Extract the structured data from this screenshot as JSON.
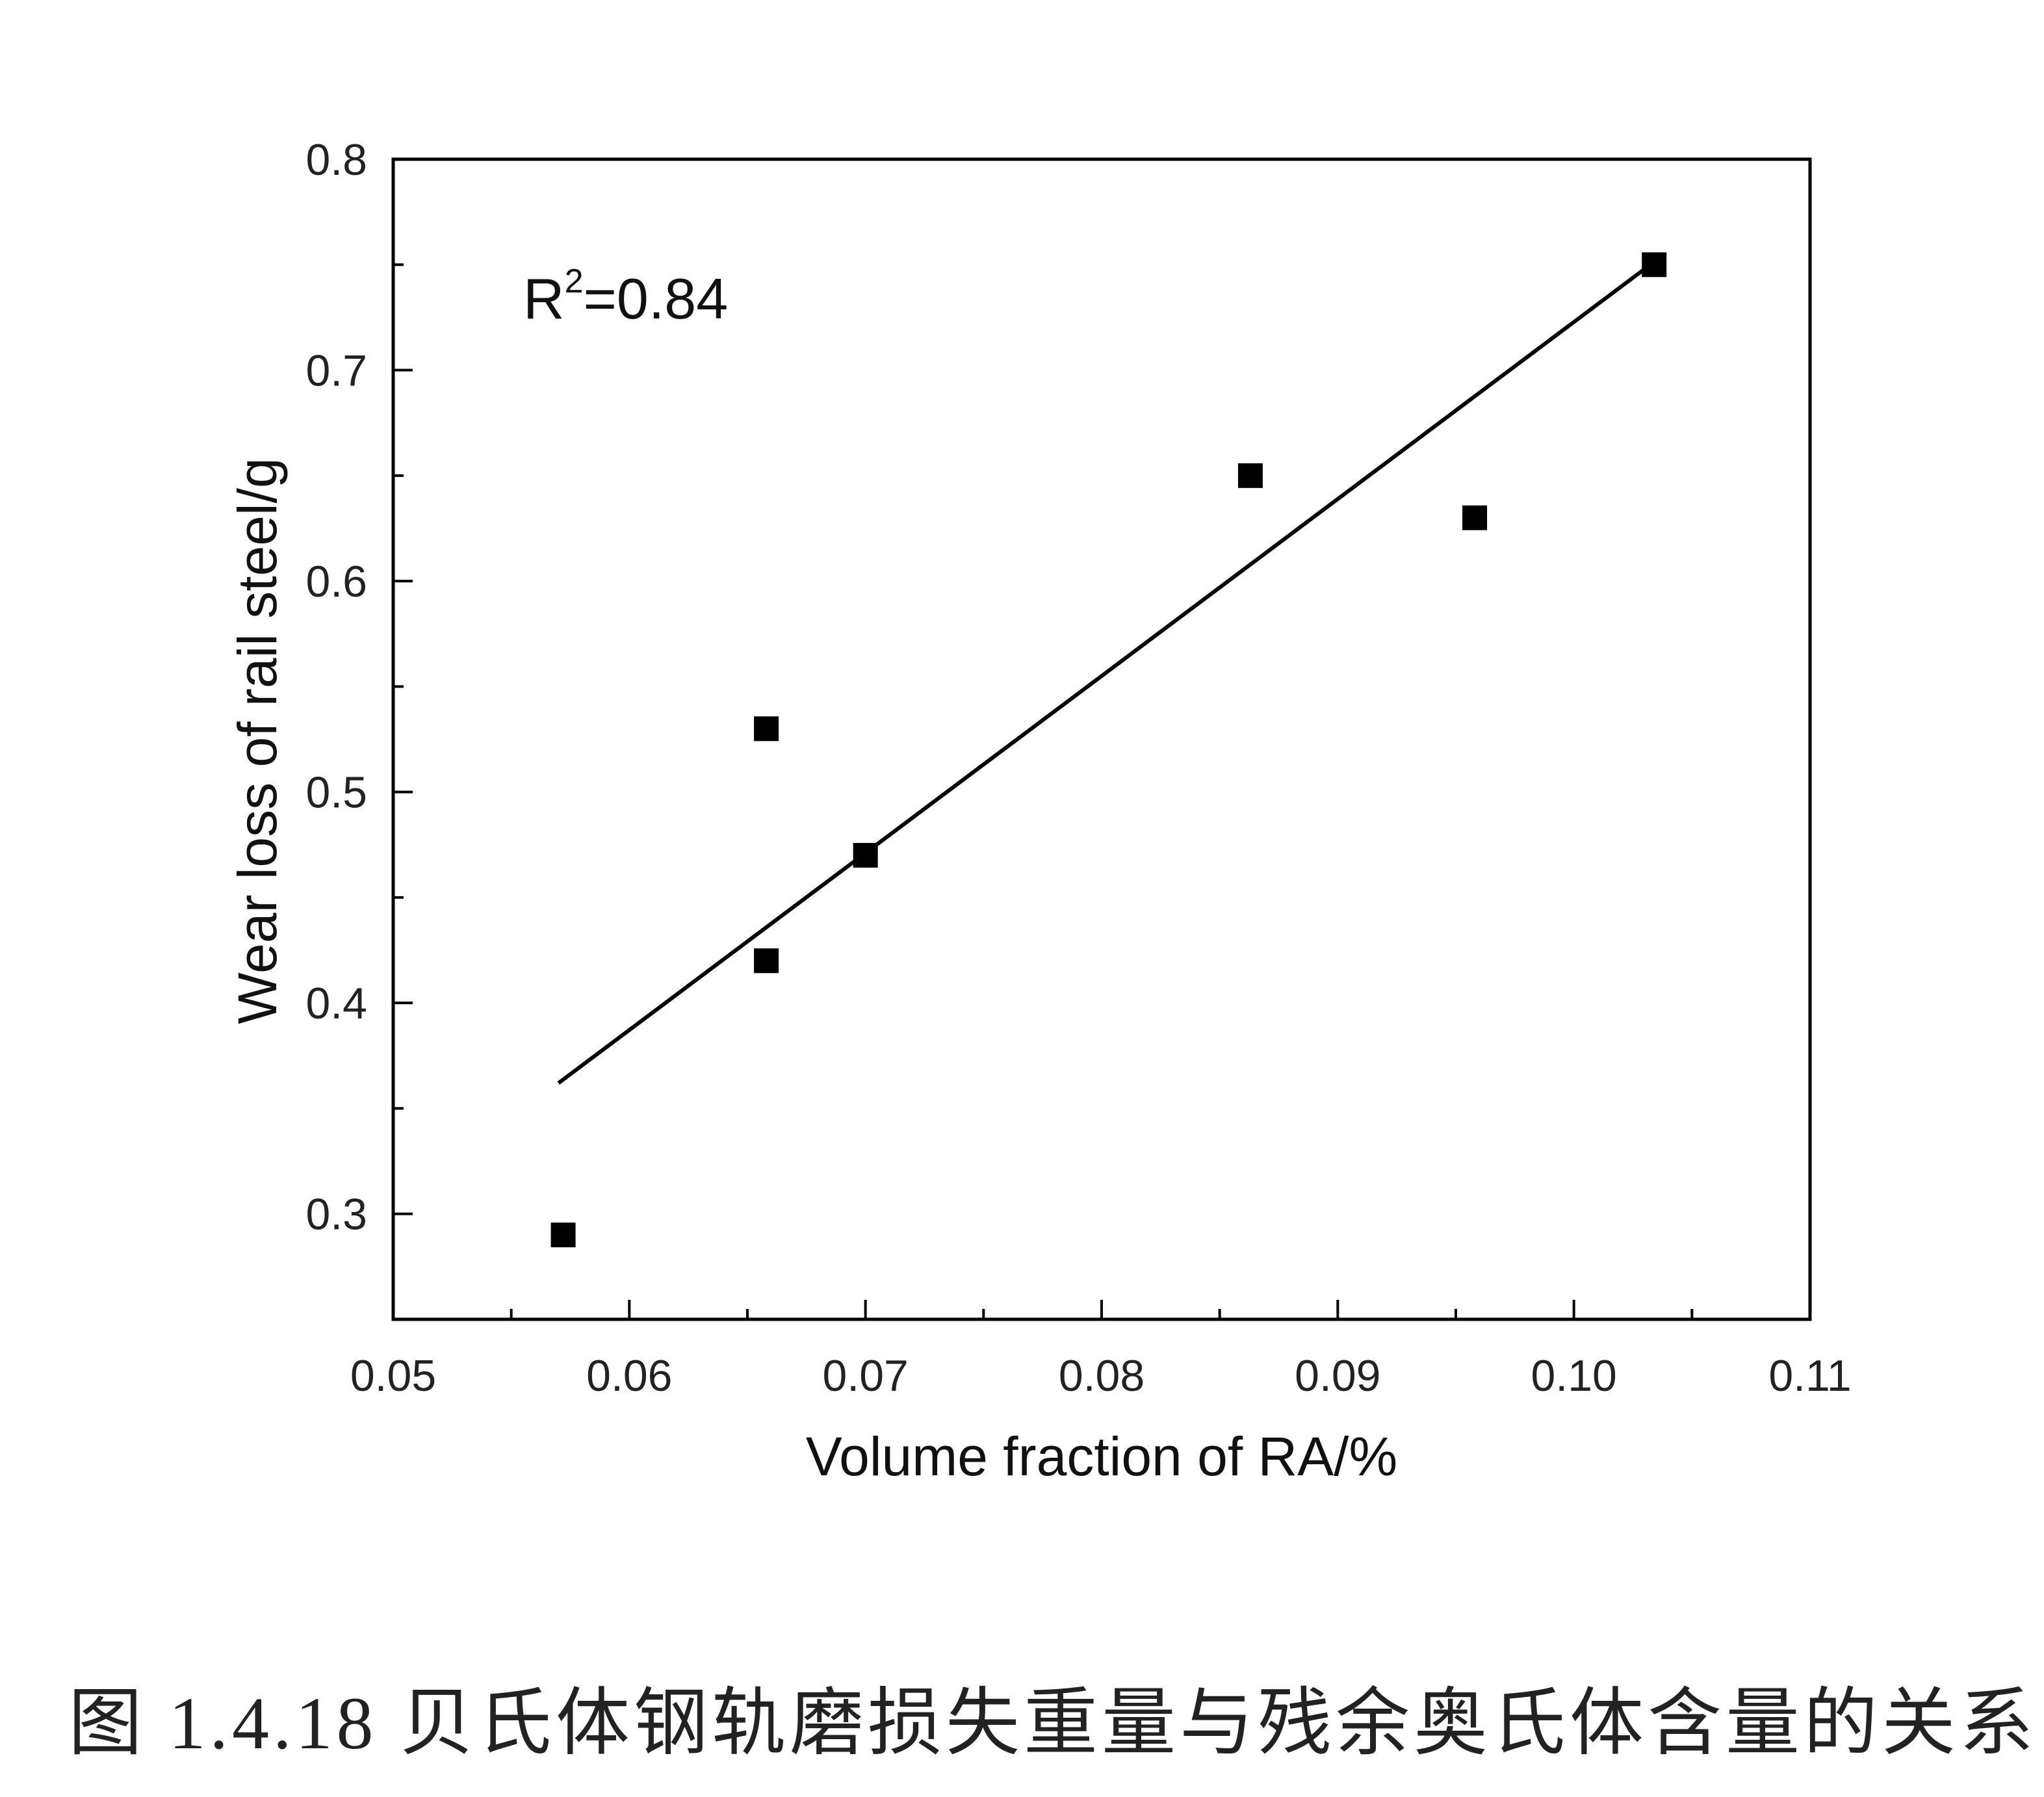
{
  "chart_data": {
    "type": "scatter",
    "xlabel": "Volume fraction of RA/%",
    "ylabel": "Wear loss of rail steel/g",
    "xlim": [
      0.05,
      0.11
    ],
    "ylim": [
      0.25,
      0.8
    ],
    "xticks": [
      "0.05",
      "0.06",
      "0.07",
      "0.08",
      "0.09",
      "0.10",
      "0.11"
    ],
    "yticks": [
      "0.3",
      "0.4",
      "0.5",
      "0.6",
      "0.7",
      "0.8"
    ],
    "x": [
      0.0572,
      0.0658,
      0.0658,
      0.07,
      0.0863,
      0.0958,
      0.1034
    ],
    "y": [
      0.29,
      0.53,
      0.42,
      0.47,
      0.65,
      0.63,
      0.75
    ],
    "fit_line": {
      "x": [
        0.057,
        0.103
      ],
      "y": [
        0.362,
        0.748
      ]
    },
    "annotation": {
      "base": "R",
      "sup": "2",
      "rest": "=0.84"
    },
    "marker": "square",
    "grid": false,
    "legend": "none",
    "color": "#000000"
  },
  "caption": "图 1.4.18 贝氏体钢轨磨损失重量与残余奥氏体含量的关系"
}
